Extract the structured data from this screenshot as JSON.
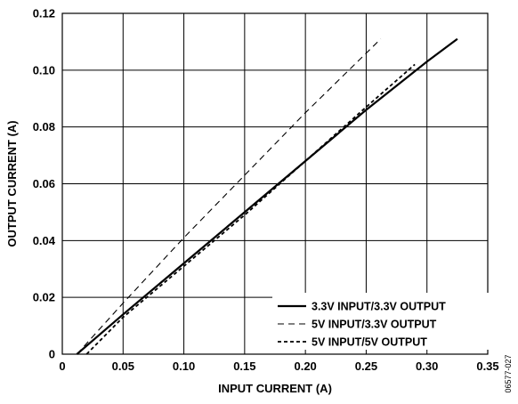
{
  "chart_data": {
    "type": "line",
    "title": "",
    "xlabel": "INPUT CURRENT (A)",
    "ylabel": "OUTPUT CURRENT (A)",
    "xlim": [
      0,
      0.35
    ],
    "ylim": [
      0,
      0.12
    ],
    "x_ticks": [
      0,
      0.05,
      0.1,
      0.15,
      0.2,
      0.25,
      0.3,
      0.35
    ],
    "x_tick_labels": [
      "0",
      "0.05",
      "0.10",
      "0.15",
      "0.20",
      "0.25",
      "0.30",
      "0.35"
    ],
    "y_ticks": [
      0,
      0.02,
      0.04,
      0.06,
      0.08,
      0.1,
      0.12
    ],
    "y_tick_labels": [
      "0",
      "0.02",
      "0.04",
      "0.06",
      "0.08",
      "0.10",
      "0.12"
    ],
    "grid": true,
    "legend_position": "bottom-right",
    "figure_id": "06577-027",
    "series": [
      {
        "name": "3.3V INPUT/3.3V OUTPUT",
        "style": "solid",
        "x": [
          0.012,
          0.05,
          0.1,
          0.15,
          0.2,
          0.25,
          0.3,
          0.325
        ],
        "y": [
          0.0,
          0.014,
          0.032,
          0.05,
          0.068,
          0.086,
          0.103,
          0.111
        ]
      },
      {
        "name": "5V INPUT/3.3V OUTPUT",
        "style": "dashed",
        "x": [
          0.012,
          0.05,
          0.1,
          0.15,
          0.2,
          0.262
        ],
        "y": [
          0.0,
          0.018,
          0.041,
          0.063,
          0.085,
          0.111
        ]
      },
      {
        "name": "5V INPUT/5V OUTPUT",
        "style": "short-dashed",
        "x": [
          0.02,
          0.05,
          0.1,
          0.15,
          0.2,
          0.25,
          0.29
        ],
        "y": [
          0.0,
          0.013,
          0.031,
          0.049,
          0.068,
          0.087,
          0.102
        ]
      }
    ]
  }
}
